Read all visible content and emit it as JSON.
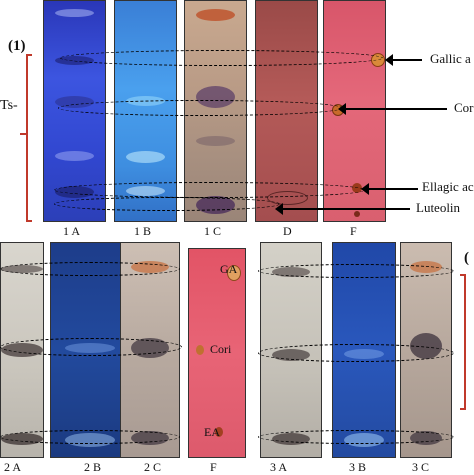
{
  "panel1": {
    "label": "(1)",
    "side_label": "Ts-",
    "lanes": [
      "1 A",
      "1 B",
      "1 C",
      "D",
      "F"
    ],
    "annotations": [
      "Gallic a",
      "Cor",
      "Ellagic ac",
      "Luteolin"
    ]
  },
  "panel2": {
    "lanes": [
      "2 A",
      "2 B",
      "2 C",
      "F"
    ],
    "plate_labels": [
      "GA",
      "Cori",
      "EA"
    ]
  },
  "panel3": {
    "label": "(",
    "lanes": [
      "3 A",
      "3 B",
      "3 C"
    ]
  }
}
